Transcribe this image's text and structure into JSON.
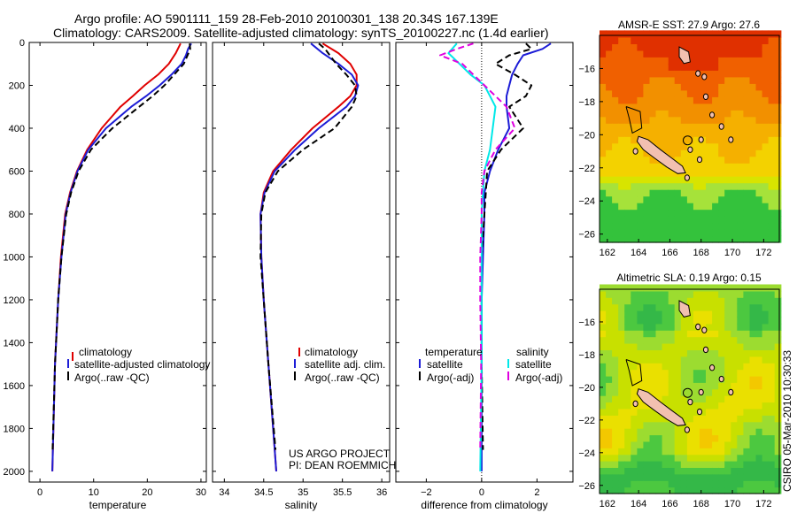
{
  "title": {
    "line1": "Argo profile: AO 5901111_159 28-Feb-2010 20100301_138 20.34S 167.139E",
    "line2": "Climatology: CARS2009. Satellite-adjusted climatology: synTS_20100227.nc (1.4d earlier)"
  },
  "footer": {
    "project": "US ARGO PROJECT",
    "pi": "PI: DEAN ROEMMICH",
    "stamp": "CSIRO 05-Mar-2010 10:30:33"
  },
  "colors": {
    "red": "#e00000",
    "blue": "#1c1cd6",
    "black": "#000000",
    "cyan": "#00e8e8",
    "magenta": "#e000e0"
  },
  "chart_data": [
    {
      "id": "temperature",
      "type": "line",
      "xlabel": "temperature",
      "ylabel": "",
      "xlim": [
        -2,
        31
      ],
      "ylim": [
        2050,
        0
      ],
      "xticks": [
        0,
        10,
        20,
        30
      ],
      "yticks": [
        0,
        200,
        400,
        600,
        800,
        1000,
        1200,
        1400,
        1600,
        1800,
        2000
      ],
      "legend": [
        "climatology",
        "satellite-adjusted climatology",
        "Argo(..raw -QC)"
      ],
      "series": [
        {
          "name": "climatology",
          "color": "red",
          "dash": false,
          "depth": [
            5,
            50,
            100,
            150,
            200,
            250,
            300,
            400,
            500,
            600,
            700,
            800,
            1000,
            1200,
            1500,
            2000
          ],
          "values": [
            26.2,
            25.3,
            24.0,
            22.0,
            19.5,
            17.3,
            15.0,
            11.5,
            8.8,
            6.9,
            5.6,
            4.7,
            3.9,
            3.4,
            2.8,
            2.3
          ]
        },
        {
          "name": "satellite-adjusted climatology",
          "color": "blue",
          "dash": false,
          "depth": [
            5,
            30,
            60,
            100,
            150,
            200,
            250,
            300,
            400,
            500,
            600,
            700,
            800,
            1000,
            1200,
            1500,
            2000
          ],
          "values": [
            28.2,
            27.6,
            27.2,
            26.4,
            24.5,
            22.3,
            19.8,
            17.0,
            12.3,
            9.0,
            7.0,
            5.7,
            4.8,
            4.0,
            3.4,
            2.8,
            2.3
          ]
        },
        {
          "name": "Argo(..raw -QC)",
          "color": "black",
          "dash": true,
          "depth": [
            5,
            30,
            60,
            100,
            150,
            200,
            250,
            300,
            400,
            500,
            600,
            700,
            800,
            1000,
            1200,
            1500,
            1900
          ],
          "values": [
            27.9,
            28.0,
            27.5,
            26.8,
            25.0,
            23.2,
            21.0,
            18.5,
            13.5,
            9.5,
            7.2,
            5.8,
            4.9,
            4.0,
            3.4,
            2.8,
            2.35
          ]
        }
      ]
    },
    {
      "id": "salinity",
      "type": "line",
      "xlabel": "salinity",
      "ylabel": "",
      "xlim": [
        33.85,
        36.1
      ],
      "ylim": [
        2050,
        0
      ],
      "xticks": [
        34,
        34.5,
        35,
        35.5,
        36
      ],
      "xticklabels": [
        "34",
        "34.5",
        "35",
        "35.5",
        "36"
      ],
      "legend": [
        "climatology",
        "satellite adj. clim.",
        "Argo(..raw -QC)"
      ],
      "series": [
        {
          "name": "climatology",
          "color": "red",
          "dash": false,
          "depth": [
            5,
            50,
            100,
            150,
            200,
            250,
            300,
            400,
            500,
            600,
            700,
            800,
            1000,
            1200,
            1500,
            2000
          ],
          "values": [
            35.25,
            35.45,
            35.6,
            35.68,
            35.68,
            35.6,
            35.45,
            35.12,
            34.85,
            34.62,
            34.5,
            34.46,
            34.47,
            34.5,
            34.56,
            34.66
          ]
        },
        {
          "name": "satellite adj. clim.",
          "color": "blue",
          "dash": false,
          "depth": [
            5,
            50,
            100,
            150,
            200,
            250,
            300,
            400,
            500,
            600,
            700,
            800,
            1000,
            1200,
            1500,
            2000
          ],
          "values": [
            35.1,
            35.25,
            35.45,
            35.62,
            35.7,
            35.66,
            35.55,
            35.2,
            34.9,
            34.64,
            34.51,
            34.46,
            34.47,
            34.5,
            34.56,
            34.66
          ]
        },
        {
          "name": "Argo(..raw -QC)",
          "color": "black",
          "dash": true,
          "depth": [
            5,
            30,
            60,
            100,
            150,
            200,
            250,
            300,
            400,
            500,
            600,
            700,
            800,
            1000,
            1200,
            1500,
            1900
          ],
          "values": [
            35.2,
            35.28,
            35.34,
            35.42,
            35.55,
            35.66,
            35.68,
            35.62,
            35.4,
            35.0,
            34.68,
            34.52,
            34.47,
            34.46,
            34.5,
            34.56,
            34.65
          ]
        }
      ]
    },
    {
      "id": "difference",
      "type": "line",
      "xlabel": "difference from climatology",
      "ylabel": "",
      "xlim": [
        -3.1,
        3.3
      ],
      "ylim": [
        2050,
        0
      ],
      "xticks": [
        -2,
        0,
        2
      ],
      "legend_temperature_title": "temperature",
      "legend_salinity_title": "salinity",
      "legend_temperature": [
        "satellite",
        "Argo(-adj)"
      ],
      "legend_salinity": [
        "satellite",
        "Argo(-adj)"
      ],
      "series": [
        {
          "name": "temperature satellite",
          "color": "blue",
          "dash": false,
          "depth": [
            5,
            30,
            60,
            100,
            150,
            200,
            250,
            300,
            400,
            500,
            600,
            700,
            800,
            1000,
            1200,
            1500,
            2000
          ],
          "values": [
            2.5,
            2.2,
            1.5,
            1.3,
            1.1,
            1.0,
            0.9,
            0.9,
            1.0,
            0.6,
            0.3,
            0.1,
            0.1,
            0.05,
            0.0,
            0.0,
            0.0
          ]
        },
        {
          "name": "temperature Argo(-adj)",
          "color": "black",
          "dash": true,
          "depth": [
            5,
            30,
            60,
            100,
            150,
            200,
            250,
            300,
            400,
            500,
            600,
            700,
            800,
            1000,
            1200,
            1500,
            1900
          ],
          "values": [
            1.6,
            1.8,
            1.0,
            0.5,
            1.2,
            1.8,
            1.6,
            1.0,
            1.5,
            0.7,
            0.2,
            0.15,
            0.1,
            0.0,
            0.0,
            0.0,
            0.05
          ]
        },
        {
          "name": "salinity satellite",
          "color": "cyan",
          "dash": false,
          "depth": [
            5,
            50,
            100,
            150,
            200,
            250,
            300,
            400,
            500,
            600,
            700,
            800,
            1000,
            1200,
            1500,
            2000
          ],
          "values": [
            -0.9,
            -1.2,
            -0.8,
            -0.4,
            0.1,
            0.3,
            0.5,
            0.4,
            0.3,
            0.1,
            0.05,
            0.0,
            0.0,
            0.0,
            0.0,
            -0.05
          ]
        },
        {
          "name": "salinity Argo(-adj)",
          "color": "magenta",
          "dash": true,
          "depth": [
            5,
            30,
            60,
            100,
            150,
            200,
            250,
            300,
            400,
            500,
            600,
            700,
            800,
            1000,
            1200,
            1500,
            1900
          ],
          "values": [
            -0.3,
            -0.9,
            -1.5,
            -0.7,
            -0.3,
            0.1,
            0.5,
            0.9,
            1.2,
            0.5,
            0.1,
            0.0,
            0.0,
            -0.05,
            -0.05,
            -0.02,
            -0.05
          ]
        }
      ]
    },
    {
      "id": "sst-map",
      "type": "heatmap",
      "title": "AMSR-E SST: 27.9 Argo: 27.6",
      "xlim": [
        161.5,
        173.0
      ],
      "ylim": [
        -26.5,
        -14.0
      ],
      "xticks": [
        162,
        164,
        166,
        168,
        170,
        172
      ],
      "yticks": [
        -16,
        -18,
        -20,
        -22,
        -24,
        -26
      ],
      "argo_position": {
        "lon": 167.139,
        "lat": -20.34
      },
      "colors": [
        "#e03000",
        "#f06000",
        "#f29000",
        "#f5b000",
        "#f3d200",
        "#d8e400",
        "#a6e23a",
        "#34c23c"
      ]
    },
    {
      "id": "sla-map",
      "type": "heatmap",
      "title": "Altimetric SLA: 0.19 Argo: 0.15",
      "xlim": [
        161.5,
        173.0
      ],
      "ylim": [
        -26.5,
        -14.0
      ],
      "xticks": [
        162,
        164,
        166,
        168,
        170,
        172
      ],
      "yticks": [
        -16,
        -18,
        -20,
        -22,
        -24,
        -26
      ],
      "argo_position": {
        "lon": 167.139,
        "lat": -20.34
      },
      "colors": [
        "#f5a000",
        "#f3c800",
        "#eae000",
        "#c8e000",
        "#9cdc30",
        "#4cc840",
        "#34b848"
      ]
    }
  ]
}
